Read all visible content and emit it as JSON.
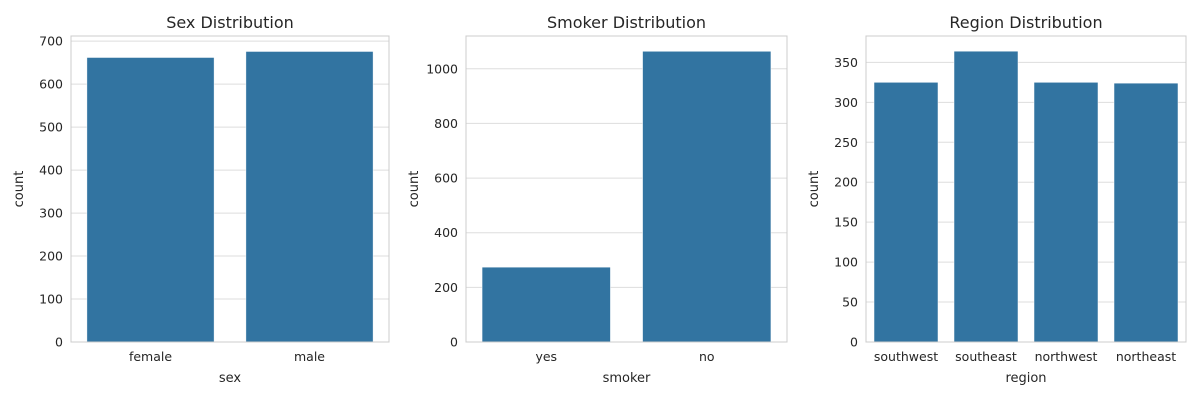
{
  "chart_data": [
    {
      "type": "bar",
      "title": "Sex Distribution",
      "xlabel": "sex",
      "ylabel": "count",
      "categories": [
        "female",
        "male"
      ],
      "values": [
        662,
        676
      ],
      "ylim": [
        0,
        712
      ],
      "yticks": [
        0,
        100,
        200,
        300,
        400,
        500,
        600,
        700
      ],
      "grid": true,
      "color": "#3274a1"
    },
    {
      "type": "bar",
      "title": "Smoker Distribution",
      "xlabel": "smoker",
      "ylabel": "count",
      "categories": [
        "yes",
        "no"
      ],
      "values": [
        274,
        1064
      ],
      "ylim": [
        0,
        1120
      ],
      "yticks": [
        0,
        200,
        400,
        600,
        800,
        1000
      ],
      "grid": true,
      "color": "#3274a1"
    },
    {
      "type": "bar",
      "title": "Region Distribution",
      "xlabel": "region",
      "ylabel": "count",
      "categories": [
        "southwest",
        "southeast",
        "northwest",
        "northeast"
      ],
      "values": [
        325,
        364,
        325,
        324
      ],
      "ylim": [
        0,
        383
      ],
      "yticks": [
        0,
        50,
        100,
        150,
        200,
        250,
        300,
        350
      ],
      "grid": true,
      "color": "#3274a1"
    }
  ]
}
